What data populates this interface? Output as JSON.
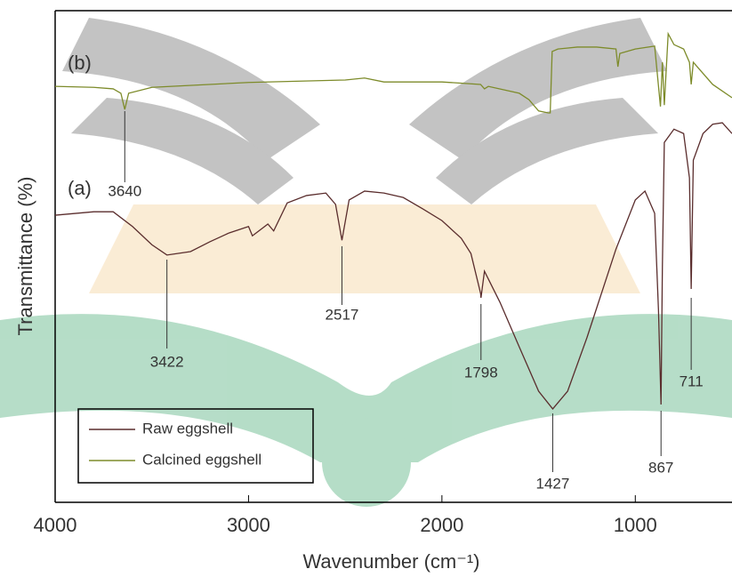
{
  "chart_data": {
    "type": "line",
    "xlabel": "Wavenumber (cm⁻¹)",
    "ylabel": "Transmittance (%)",
    "xlim": [
      4000,
      500
    ],
    "xticks": [
      4000,
      3000,
      2000,
      1000
    ],
    "ylim": [
      0,
      100
    ],
    "legend": "bottom-left",
    "series": [
      {
        "name": "Raw eggshell",
        "tag": "(a)",
        "color": "#5a2d2d",
        "x": [
          4000,
          3800,
          3700,
          3600,
          3500,
          3422,
          3300,
          3200,
          3100,
          3000,
          2980,
          2900,
          2870,
          2800,
          2700,
          2600,
          2550,
          2517,
          2480,
          2400,
          2300,
          2200,
          2100,
          2000,
          1900,
          1850,
          1800,
          1798,
          1780,
          1700,
          1600,
          1500,
          1427,
          1350,
          1250,
          1100,
          1000,
          950,
          900,
          880,
          867,
          860,
          850,
          800,
          750,
          720,
          711,
          700,
          650,
          600,
          550,
          500
        ],
        "values": [
          58.4,
          59.1,
          59.1,
          56.1,
          52.4,
          50.3,
          51.0,
          53.0,
          54.8,
          56.1,
          54.2,
          56.6,
          55.2,
          60.9,
          62.4,
          62.9,
          60.6,
          53.3,
          61.5,
          63.3,
          62.9,
          62.0,
          59.7,
          57.3,
          53.7,
          50.6,
          42.5,
          41.6,
          47.0,
          40.7,
          31.6,
          22.6,
          19.0,
          22.6,
          33.5,
          51.5,
          61.5,
          63.3,
          58.8,
          38.9,
          19.9,
          47.9,
          73.2,
          75.9,
          75.0,
          66.0,
          43.4,
          69.6,
          75.0,
          76.9,
          77.2,
          75.0
        ]
      },
      {
        "name": "Calcined eggshell",
        "tag": "(b)",
        "color": "#7d8b2a",
        "x": [
          4000,
          3800,
          3700,
          3660,
          3640,
          3620,
          3500,
          3000,
          2500,
          2400,
          2300,
          2000,
          1800,
          1780,
          1760,
          1600,
          1550,
          1500,
          1450,
          1440,
          1430,
          1400,
          1300,
          1200,
          1100,
          1090,
          1080,
          1000,
          900,
          870,
          860,
          850,
          830,
          800,
          750,
          720,
          711,
          700,
          600,
          500
        ],
        "values": [
          84.6,
          84.4,
          84.1,
          83.2,
          79.9,
          83.2,
          84.4,
          85.4,
          85.9,
          86.3,
          85.5,
          85.5,
          85.0,
          84.1,
          84.6,
          83.2,
          81.9,
          79.6,
          79.2,
          79.2,
          91.7,
          92.2,
          92.6,
          92.6,
          92.2,
          88.6,
          91.3,
          92.2,
          92.8,
          80.5,
          89.5,
          80.8,
          95.3,
          93.1,
          92.2,
          89.5,
          85.0,
          89.5,
          85.0,
          82.3
        ]
      }
    ],
    "peaks": [
      {
        "label": "3640",
        "x": 3640
      },
      {
        "label": "3422",
        "x": 3422
      },
      {
        "label": "2517",
        "x": 2517
      },
      {
        "label": "1798",
        "x": 1798
      },
      {
        "label": "1427",
        "x": 1427
      },
      {
        "label": "867",
        "x": 867
      },
      {
        "label": "711",
        "x": 711
      }
    ]
  }
}
